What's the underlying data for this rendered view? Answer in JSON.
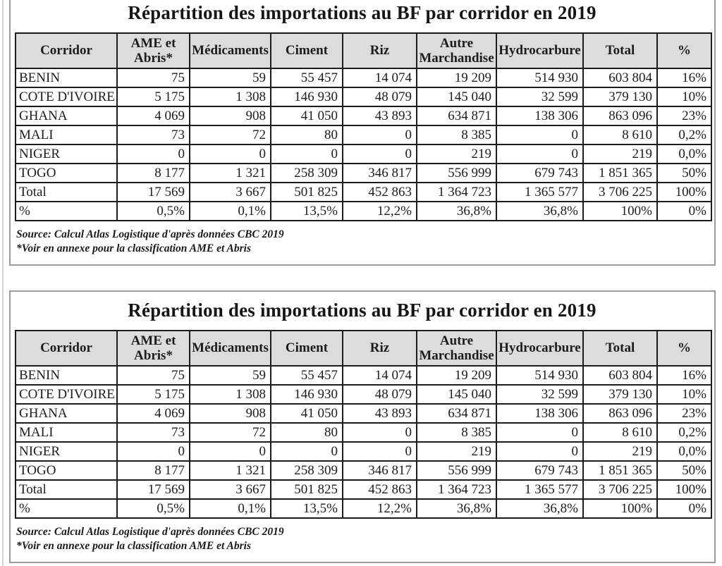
{
  "page": {
    "colors": {
      "header_bg": "#dcdcdc",
      "grid": "#1c1c1c",
      "frame": "#9b9b9b"
    }
  },
  "table_block": {
    "title": "Répartition des importations au BF par corridor en 2019",
    "columns": [
      "Corridor",
      "AME et\nAbris*",
      "Médicaments",
      "Ciment",
      "Riz",
      "Autre\nMarchandise",
      "Hydrocarbure",
      "Total",
      "%"
    ],
    "rows": [
      [
        "BENIN",
        "75",
        "59",
        "55 457",
        "14 074",
        "19 209",
        "514 930",
        "603 804",
        "16%"
      ],
      [
        "COTE D'IVOIRE",
        "5 175",
        "1 308",
        "146 930",
        "48 079",
        "145 040",
        "32 599",
        "379 130",
        "10%"
      ],
      [
        "GHANA",
        "4 069",
        "908",
        "41 050",
        "43 893",
        "634 871",
        "138 306",
        "863 096",
        "23%"
      ],
      [
        "MALI",
        "73",
        "72",
        "80",
        "0",
        "8 385",
        "0",
        "8 610",
        "0,2%"
      ],
      [
        "NIGER",
        "0",
        "0",
        "0",
        "0",
        "219",
        "0",
        "219",
        "0,0%"
      ],
      [
        "TOGO",
        "8 177",
        "1 321",
        "258 309",
        "346 817",
        "556 999",
        "679 743",
        "1 851 365",
        "50%"
      ],
      [
        "Total",
        "17 569",
        "3 667",
        "501 825",
        "452 863",
        "1 364 723",
        "1 365 577",
        "3 706 225",
        "100%"
      ],
      [
        "%",
        "0,5%",
        "0,1%",
        "13,5%",
        "12,2%",
        "36,8%",
        "36,8%",
        "100%",
        "0%"
      ]
    ],
    "source_line1": "Source: Calcul Atlas Logistique d'après données CBC 2019",
    "source_line2": "*Voir en annexe pour la classification AME et Abris"
  }
}
